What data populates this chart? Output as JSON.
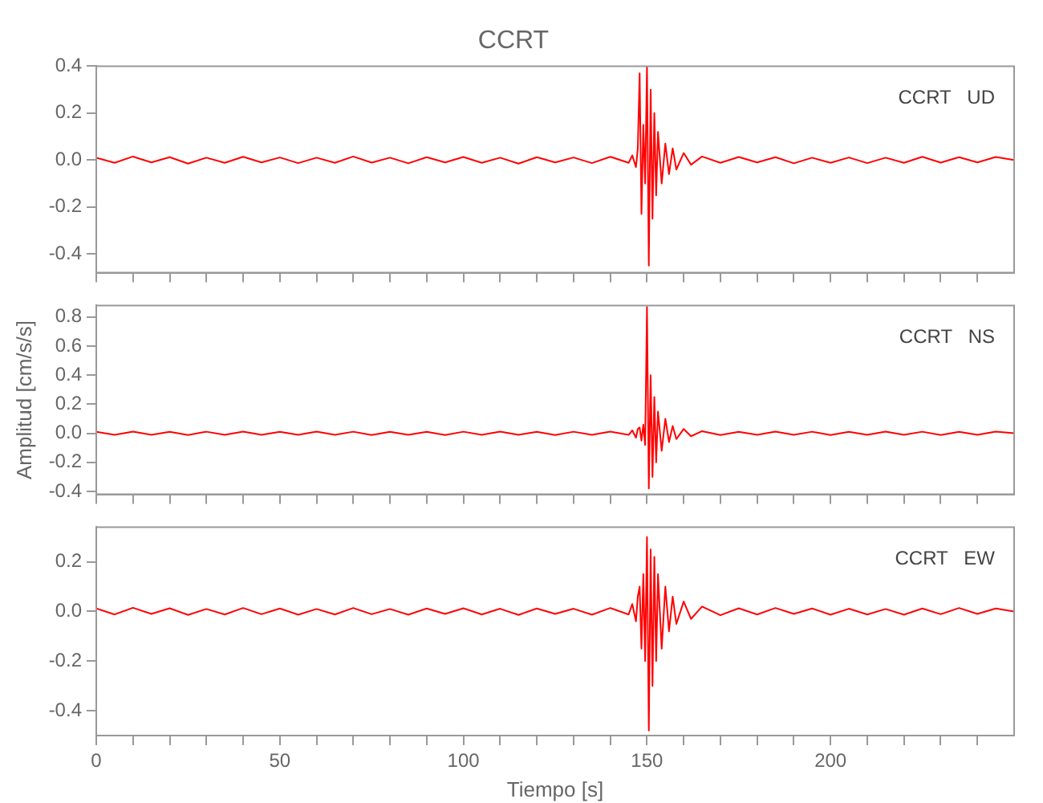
{
  "chart_data": [
    {
      "type": "line",
      "title": "CCRT",
      "annotations": [
        "CCRT   UD"
      ],
      "tick_labels": "y",
      "xlim": [
        0,
        250
      ],
      "ylim": [
        -0.48,
        0.4
      ],
      "xticks": [
        0,
        {
          "value": 10,
          "label": null
        },
        {
          "value": 20,
          "label": null
        },
        {
          "value": 30,
          "label": null
        },
        {
          "value": 40,
          "label": null
        },
        50,
        {
          "value": 60,
          "label": null
        },
        {
          "value": 70,
          "label": null
        },
        {
          "value": 80,
          "label": null
        },
        {
          "value": 90,
          "label": null
        },
        100,
        {
          "value": 110,
          "label": null
        },
        {
          "value": 120,
          "label": null
        },
        {
          "value": 130,
          "label": null
        },
        {
          "value": 140,
          "label": null
        },
        150,
        {
          "value": 160,
          "label": null
        },
        {
          "value": 170,
          "label": null
        },
        {
          "value": 180,
          "label": null
        },
        {
          "value": 190,
          "label": null
        },
        200,
        {
          "value": 210,
          "label": null
        },
        {
          "value": 220,
          "label": null
        },
        {
          "value": 230,
          "label": null
        },
        {
          "value": 240,
          "label": null
        }
      ],
      "yticks": [
        {
          "value": -0.4,
          "label": "-0.4"
        },
        {
          "value": -0.2,
          "label": "-0.2"
        },
        {
          "value": 0,
          "label": "0.0"
        },
        0.2,
        0.4
      ],
      "x": [
        0,
        5,
        10,
        15,
        20,
        25,
        30,
        35,
        40,
        45,
        50,
        55,
        60,
        65,
        70,
        75,
        80,
        85,
        90,
        95,
        100,
        105,
        110,
        115,
        120,
        125,
        130,
        135,
        140,
        145,
        146,
        147,
        147.5,
        148,
        148.5,
        149,
        149.5,
        150,
        150.5,
        151,
        151.5,
        152,
        152.5,
        153,
        154,
        155,
        156,
        157,
        158,
        160,
        162,
        165,
        170,
        175,
        180,
        185,
        190,
        195,
        200,
        205,
        210,
        215,
        220,
        225,
        230,
        235,
        240,
        245,
        250
      ],
      "series": [
        {
          "color": "#ff0000",
          "values": [
            0.01,
            -0.012,
            0.015,
            -0.01,
            0.012,
            -0.015,
            0.01,
            -0.012,
            0.014,
            -0.01,
            0.011,
            -0.013,
            0.01,
            -0.012,
            0.015,
            -0.011,
            0.01,
            -0.014,
            0.012,
            -0.01,
            0.013,
            -0.012,
            0.01,
            -0.015,
            0.012,
            -0.01,
            0.011,
            -0.013,
            0.014,
            -0.012,
            0.02,
            -0.03,
            0.05,
            0.37,
            -0.23,
            0.15,
            -0.1,
            0.4,
            -0.45,
            0.3,
            -0.25,
            0.2,
            -0.15,
            0.12,
            -0.1,
            0.07,
            -0.06,
            0.05,
            -0.04,
            0.03,
            -0.02,
            0.015,
            -0.012,
            0.013,
            -0.01,
            0.012,
            -0.014,
            0.01,
            -0.012,
            0.011,
            -0.013,
            0.01,
            -0.012,
            0.014,
            -0.011,
            0.012,
            -0.01,
            0.013,
            0.0
          ]
        }
      ]
    },
    {
      "type": "line",
      "ylabel": "Amplitud [cm/s/s]",
      "annotations": [
        "CCRT   NS"
      ],
      "tick_labels": "y",
      "xlim": [
        0,
        250
      ],
      "ylim": [
        -0.42,
        0.88
      ],
      "xticks": [
        0,
        {
          "value": 10,
          "label": null
        },
        {
          "value": 20,
          "label": null
        },
        {
          "value": 30,
          "label": null
        },
        {
          "value": 40,
          "label": null
        },
        50,
        {
          "value": 60,
          "label": null
        },
        {
          "value": 70,
          "label": null
        },
        {
          "value": 80,
          "label": null
        },
        {
          "value": 90,
          "label": null
        },
        100,
        {
          "value": 110,
          "label": null
        },
        {
          "value": 120,
          "label": null
        },
        {
          "value": 130,
          "label": null
        },
        {
          "value": 140,
          "label": null
        },
        150,
        {
          "value": 160,
          "label": null
        },
        {
          "value": 170,
          "label": null
        },
        {
          "value": 180,
          "label": null
        },
        {
          "value": 190,
          "label": null
        },
        200,
        {
          "value": 210,
          "label": null
        },
        {
          "value": 220,
          "label": null
        },
        {
          "value": 230,
          "label": null
        },
        {
          "value": 240,
          "label": null
        }
      ],
      "yticks": [
        {
          "value": -0.4,
          "label": "-0.4"
        },
        {
          "value": -0.2,
          "label": "-0.2"
        },
        {
          "value": 0,
          "label": "0.0"
        },
        0.2,
        0.4,
        0.6,
        0.8
      ],
      "x": [
        0,
        5,
        10,
        15,
        20,
        25,
        30,
        35,
        40,
        45,
        50,
        55,
        60,
        65,
        70,
        75,
        80,
        85,
        90,
        95,
        100,
        105,
        110,
        115,
        120,
        125,
        130,
        135,
        140,
        145,
        146,
        147,
        147.5,
        148,
        148.5,
        149,
        149.5,
        150,
        150.5,
        151,
        151.5,
        152,
        152.5,
        153,
        154,
        155,
        156,
        157,
        158,
        160,
        162,
        165,
        170,
        175,
        180,
        185,
        190,
        195,
        200,
        205,
        210,
        215,
        220,
        225,
        230,
        235,
        240,
        245,
        250
      ],
      "series": [
        {
          "color": "#ff0000",
          "values": [
            0.01,
            -0.01,
            0.012,
            -0.011,
            0.01,
            -0.012,
            0.011,
            -0.01,
            0.012,
            -0.01,
            0.01,
            -0.011,
            0.012,
            -0.01,
            0.011,
            -0.012,
            0.01,
            -0.011,
            0.01,
            -0.012,
            0.011,
            -0.01,
            0.012,
            -0.011,
            0.01,
            -0.012,
            0.011,
            -0.01,
            0.012,
            -0.011,
            0.02,
            -0.03,
            0.03,
            0.04,
            -0.05,
            0.06,
            -0.08,
            0.87,
            -0.38,
            0.4,
            -0.3,
            0.25,
            -0.2,
            0.15,
            -0.12,
            0.1,
            -0.06,
            0.05,
            -0.04,
            0.03,
            -0.02,
            0.015,
            -0.012,
            0.01,
            -0.011,
            0.012,
            -0.01,
            0.011,
            -0.012,
            0.01,
            -0.011,
            0.012,
            -0.01,
            0.011,
            -0.012,
            0.01,
            -0.011,
            0.012,
            0.0
          ]
        }
      ]
    },
    {
      "type": "line",
      "xlabel": "Tiempo [s]",
      "annotations": [
        "CCRT   EW"
      ],
      "xlim": [
        0,
        250
      ],
      "ylim": [
        -0.5,
        0.34
      ],
      "xticks": [
        0,
        {
          "value": 10,
          "label": null
        },
        {
          "value": 20,
          "label": null
        },
        {
          "value": 30,
          "label": null
        },
        {
          "value": 40,
          "label": null
        },
        50,
        {
          "value": 60,
          "label": null
        },
        {
          "value": 70,
          "label": null
        },
        {
          "value": 80,
          "label": null
        },
        {
          "value": 90,
          "label": null
        },
        100,
        {
          "value": 110,
          "label": null
        },
        {
          "value": 120,
          "label": null
        },
        {
          "value": 130,
          "label": null
        },
        {
          "value": 140,
          "label": null
        },
        150,
        {
          "value": 160,
          "label": null
        },
        {
          "value": 170,
          "label": null
        },
        {
          "value": 180,
          "label": null
        },
        {
          "value": 190,
          "label": null
        },
        200,
        {
          "value": 210,
          "label": null
        },
        {
          "value": 220,
          "label": null
        },
        {
          "value": 230,
          "label": null
        },
        {
          "value": 240,
          "label": null
        }
      ],
      "yticks": [
        {
          "value": -0.4,
          "label": "-0.4"
        },
        {
          "value": -0.2,
          "label": "-0.2"
        },
        {
          "value": 0,
          "label": "0.0"
        },
        0.2
      ],
      "x": [
        0,
        5,
        10,
        15,
        20,
        25,
        30,
        35,
        40,
        45,
        50,
        55,
        60,
        65,
        70,
        75,
        80,
        85,
        90,
        95,
        100,
        105,
        110,
        115,
        120,
        125,
        130,
        135,
        140,
        145,
        146,
        147,
        147.5,
        148,
        148.5,
        149,
        149.5,
        150,
        150.5,
        151,
        151.5,
        152,
        152.5,
        153,
        154,
        155,
        156,
        157,
        158,
        160,
        162,
        165,
        170,
        175,
        180,
        185,
        190,
        195,
        200,
        205,
        210,
        215,
        220,
        225,
        230,
        235,
        240,
        245,
        250
      ],
      "series": [
        {
          "color": "#ff0000",
          "values": [
            0.012,
            -0.012,
            0.015,
            -0.01,
            0.013,
            -0.014,
            0.01,
            -0.012,
            0.014,
            -0.011,
            0.012,
            -0.013,
            0.01,
            -0.012,
            0.014,
            -0.011,
            0.01,
            -0.013,
            0.012,
            -0.01,
            0.013,
            -0.012,
            0.011,
            -0.014,
            0.012,
            -0.01,
            0.011,
            -0.013,
            0.014,
            -0.012,
            0.03,
            -0.04,
            0.06,
            0.1,
            -0.15,
            0.15,
            -0.2,
            0.3,
            -0.48,
            0.25,
            -0.3,
            0.22,
            -0.2,
            0.15,
            -0.15,
            0.1,
            -0.08,
            0.06,
            -0.05,
            0.04,
            -0.03,
            0.02,
            -0.015,
            0.013,
            -0.012,
            0.014,
            -0.01,
            0.012,
            -0.013,
            0.011,
            -0.012,
            0.01,
            -0.013,
            0.012,
            -0.011,
            0.014,
            -0.01,
            0.012,
            0.0
          ]
        }
      ]
    }
  ]
}
